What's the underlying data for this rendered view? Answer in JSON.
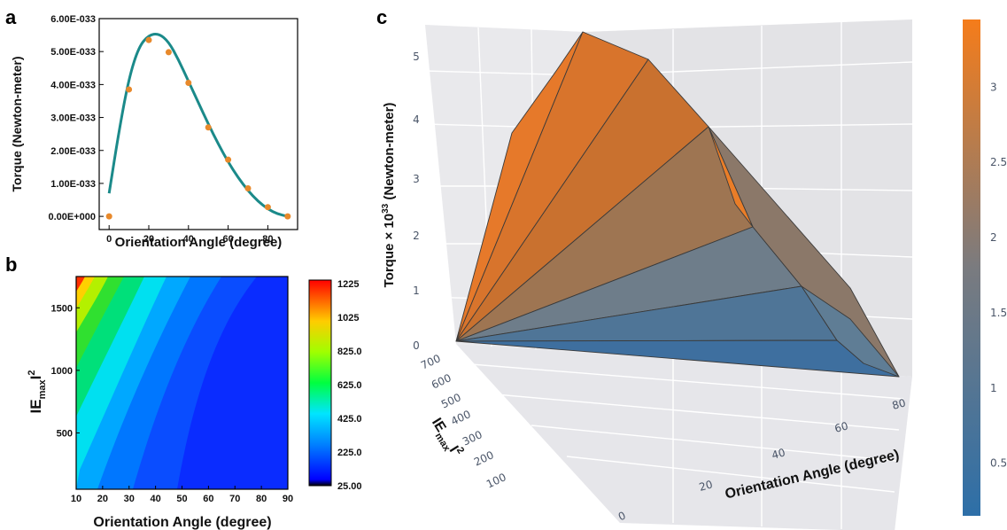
{
  "panels": {
    "a": "a",
    "b": "b",
    "c": "c"
  },
  "chart_data": [
    {
      "type": "scatter",
      "panel": "a",
      "xlabel": "Orientation Angle (degree)",
      "ylabel": "Torque (Newton-meter)",
      "xlim": [
        -5,
        95
      ],
      "ylim": [
        -4e-34,
        6e-33
      ],
      "x_ticks": [
        0,
        20,
        40,
        60,
        80
      ],
      "y_ticks": [
        "0.00E+000",
        "1.00E-033",
        "2.00E-033",
        "3.00E-033",
        "4.00E-033",
        "5.00E-033",
        "6.00E-033"
      ],
      "y_tick_values": [
        0,
        1e-33,
        2e-33,
        3e-33,
        4e-33,
        5e-33,
        6e-33
      ],
      "points": {
        "x": [
          0,
          10,
          20,
          30,
          40,
          50,
          60,
          70,
          80,
          90
        ],
        "y": [
          0.0,
          3.85e-33,
          5.35e-33,
          4.98e-33,
          4.05e-33,
          2.7e-33,
          1.72e-33,
          8.5e-34,
          2.8e-34,
          0.0
        ],
        "color": "#e8892b"
      },
      "fit_curve": {
        "x": [
          0,
          5,
          10,
          15,
          20,
          25,
          30,
          35,
          40,
          45,
          50,
          55,
          60,
          65,
          70,
          75,
          80,
          85,
          90
        ],
        "y": [
          7e-34,
          2.6e-33,
          4.2e-33,
          5.15e-33,
          5.5e-33,
          5.55e-33,
          5.3e-33,
          4.75e-33,
          4.1e-33,
          3.45e-33,
          2.8e-33,
          2.2e-33,
          1.65e-33,
          1.18e-33,
          7.8e-34,
          4.6e-34,
          2.2e-34,
          7e-35,
          0.0
        ],
        "color": "#1b8a8a"
      }
    },
    {
      "type": "heatmap",
      "panel": "b",
      "xlabel": "Orientation Angle (degree)",
      "ylabel_main": "IE",
      "ylabel_sub": "max",
      "ylabel_tail": "I",
      "ylabel_sup": "2",
      "xlim": [
        10,
        90
      ],
      "ylim": [
        50,
        1750
      ],
      "x_ticks": [
        10,
        20,
        30,
        40,
        50,
        60,
        70,
        80,
        90
      ],
      "y_ticks": [
        500,
        1000,
        1500
      ],
      "colorbar_ticks": [
        "1225",
        "1025",
        "825.0",
        "625.0",
        "425.0",
        "225.0",
        "25.00"
      ],
      "colorbar_values": [
        1225,
        1025,
        825,
        625,
        425,
        225,
        25
      ]
    },
    {
      "type": "surface3d",
      "panel": "c",
      "zlabel": "Torque × 10",
      "zlabel_sup": "33",
      "zlabel_tail": " (Newton-meter)",
      "xlabel": "Orientation Angle (degree)",
      "ylabel_main": "IE",
      "ylabel_sub": "max",
      "ylabel_tail": "I",
      "ylabel_sup": "2",
      "z_ticks": [
        "0",
        "1",
        "2",
        "3",
        "4",
        "5"
      ],
      "y_ticks": [
        "700",
        "600",
        "500",
        "400",
        "300",
        "200",
        "100",
        "0"
      ],
      "x_ticks": [
        "20",
        "40",
        "60",
        "80",
        "0"
      ],
      "colorbar_ticks": [
        "3",
        "2.5",
        "2",
        "1.5",
        "1",
        "0.5"
      ],
      "colorbar_values": [
        3,
        2.5,
        2,
        1.5,
        1,
        0.5
      ],
      "colorscale": [
        "#2d6fa8",
        "#7a7b7f",
        "#f07c1e"
      ]
    }
  ]
}
